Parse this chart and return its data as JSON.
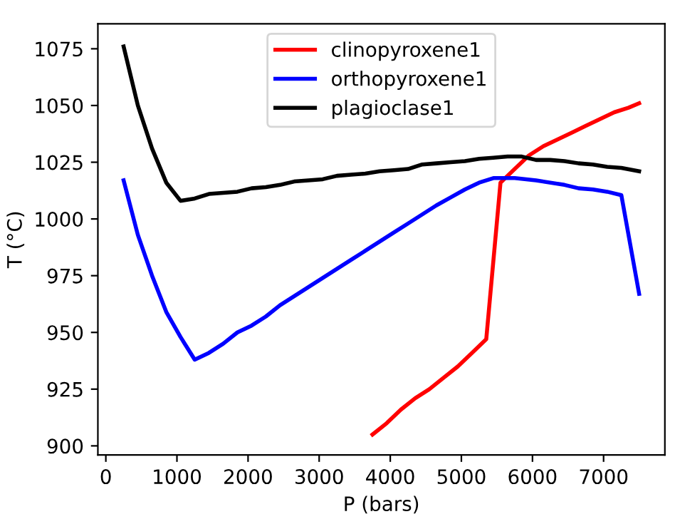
{
  "chart_data": {
    "type": "line",
    "xlabel": "P (bars)",
    "ylabel": "T (°C)",
    "xlim": [
      -112,
      7862
    ],
    "ylim": [
      896,
      1086
    ],
    "xticks": [
      0,
      1000,
      2000,
      3000,
      4000,
      5000,
      6000,
      7000
    ],
    "yticks": [
      900,
      925,
      950,
      975,
      1000,
      1025,
      1050,
      1075
    ],
    "grid": false,
    "legend": "top center",
    "series": [
      {
        "name": "clinopyroxene1",
        "color": "#ff0000",
        "x": [
          3750,
          3950,
          4150,
          4350,
          4550,
          4750,
          4950,
          5150,
          5350,
          5550,
          5750,
          5950,
          6150,
          6350,
          6550,
          6750,
          6950,
          7150,
          7350,
          7500
        ],
        "values": [
          905,
          910,
          916,
          921,
          925,
          930,
          935,
          941,
          947,
          1016,
          1022,
          1028,
          1032,
          1035,
          1038,
          1041,
          1044,
          1047,
          1049,
          1051
        ]
      },
      {
        "name": "orthopyroxene1",
        "color": "#0000ff",
        "x": [
          250,
          450,
          650,
          850,
          1050,
          1250,
          1450,
          1650,
          1850,
          2050,
          2250,
          2450,
          2650,
          2850,
          3050,
          3250,
          3450,
          3650,
          3850,
          4050,
          4250,
          4450,
          4650,
          4850,
          5050,
          5250,
          5450,
          5750,
          6050,
          6450,
          6650,
          6850,
          7050,
          7250,
          7500
        ],
        "values": [
          1017,
          993,
          975,
          959,
          948,
          938,
          941,
          945,
          950,
          953,
          957,
          962,
          966,
          970,
          974,
          978,
          982,
          986,
          990,
          994,
          998,
          1002,
          1006,
          1009.5,
          1013,
          1016,
          1018,
          1018,
          1017,
          1015,
          1013.5,
          1013,
          1012,
          1010.5,
          967
        ]
      },
      {
        "name": "plagioclase1",
        "color": "#000000",
        "x": [
          250,
          450,
          650,
          850,
          1050,
          1250,
          1450,
          1650,
          1850,
          2050,
          2250,
          2450,
          2650,
          2850,
          3050,
          3250,
          3450,
          3650,
          3850,
          4050,
          4250,
          4450,
          4650,
          4850,
          5050,
          5250,
          5450,
          5650,
          5850,
          6050,
          6250,
          6450,
          6650,
          6850,
          7050,
          7250,
          7500
        ],
        "values": [
          1076,
          1050,
          1031,
          1016,
          1008,
          1009,
          1011,
          1011.5,
          1012,
          1013.5,
          1014,
          1015,
          1016.5,
          1017,
          1017.5,
          1019,
          1019.5,
          1020,
          1021,
          1021.5,
          1022,
          1024,
          1024.5,
          1025,
          1025.5,
          1026.5,
          1027,
          1027.5,
          1027.5,
          1026,
          1026,
          1025.5,
          1024.5,
          1024,
          1023,
          1022.5,
          1021
        ]
      }
    ]
  }
}
